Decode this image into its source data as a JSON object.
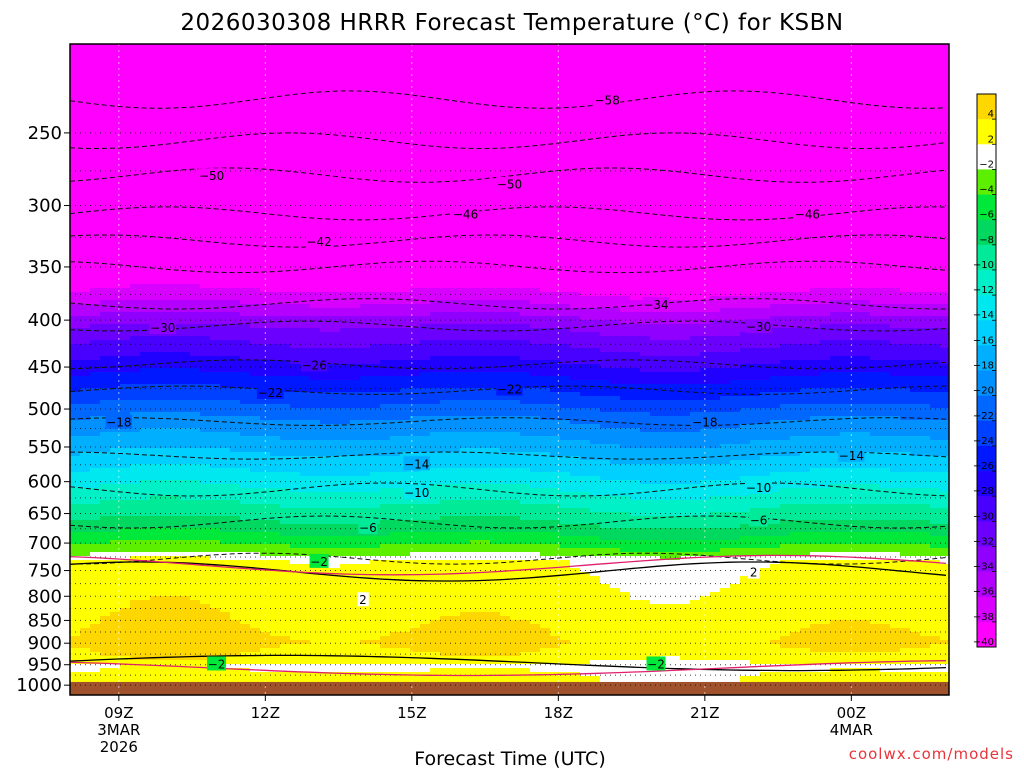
{
  "chart_data": {
    "type": "heatmap",
    "title": "2026030308 HRRR Forecast Temperature (°C) for KSBN",
    "xlabel": "Forecast Time (UTC)",
    "ylabel": "",
    "y_axis_unit": "hPa",
    "y_ticks": [
      250,
      300,
      350,
      400,
      450,
      500,
      550,
      600,
      650,
      700,
      750,
      800,
      850,
      900,
      950,
      1000
    ],
    "x_ticks": [
      {
        "hour": 9,
        "label": "09Z",
        "line2": "3MAR",
        "line3": "2026"
      },
      {
        "hour": 12,
        "label": "12Z",
        "line2": "",
        "line3": ""
      },
      {
        "hour": 15,
        "label": "15Z",
        "line2": "",
        "line3": ""
      },
      {
        "hour": 18,
        "label": "18Z",
        "line2": "",
        "line3": ""
      },
      {
        "hour": 21,
        "label": "21Z",
        "line2": "",
        "line3": ""
      },
      {
        "hour": 24,
        "label": "00Z",
        "line2": "4MAR",
        "line3": ""
      }
    ],
    "xlim": [
      8,
      26
    ],
    "ylim": [
      200,
      1025
    ],
    "ground_level_hPa": 992,
    "colorbar": {
      "labels": [
        4,
        2,
        -2,
        -4,
        -6,
        -8,
        -10,
        -12,
        -14,
        -16,
        -18,
        -20,
        -22,
        -24,
        -26,
        -28,
        -30,
        -32,
        -34,
        -36,
        -38,
        -40
      ],
      "colors": [
        "#ffd700",
        "#ffff00",
        "#ffffff",
        "#5cf000",
        "#00e83a",
        "#00d860",
        "#00ea98",
        "#00f0c8",
        "#00e8ef",
        "#00d0ff",
        "#00b0ff",
        "#0090ff",
        "#0068ff",
        "#0040ff",
        "#0018ff",
        "#2000ff",
        "#4800ff",
        "#6c00ff",
        "#9000ff",
        "#b400ff",
        "#d800ff",
        "#ff00ff"
      ]
    },
    "contour_labels": [
      {
        "text": "-58",
        "hour": 19.0,
        "p": 230
      },
      {
        "text": "-50",
        "hour": 10.9,
        "p": 278
      },
      {
        "text": "-50",
        "hour": 17.0,
        "p": 284
      },
      {
        "text": "-46",
        "hour": 16.1,
        "p": 306
      },
      {
        "text": "-46",
        "hour": 23.1,
        "p": 306
      },
      {
        "text": "-42",
        "hour": 13.1,
        "p": 328
      },
      {
        "text": "-34",
        "hour": 20.0,
        "p": 384
      },
      {
        "text": "-30",
        "hour": 9.9,
        "p": 407
      },
      {
        "text": "-30",
        "hour": 22.1,
        "p": 406
      },
      {
        "text": "-26",
        "hour": 13.0,
        "p": 447
      },
      {
        "text": "-22",
        "hour": 12.1,
        "p": 479
      },
      {
        "text": "-22",
        "hour": 17.0,
        "p": 475
      },
      {
        "text": "-18",
        "hour": 9.0,
        "p": 516
      },
      {
        "text": "-18",
        "hour": 21.0,
        "p": 516
      },
      {
        "text": "-14",
        "hour": 15.1,
        "p": 573
      },
      {
        "text": "-14",
        "hour": 24.0,
        "p": 561
      },
      {
        "text": "-10",
        "hour": 15.1,
        "p": 616
      },
      {
        "text": "-10",
        "hour": 22.1,
        "p": 608
      },
      {
        "text": "-6",
        "hour": 14.1,
        "p": 672
      },
      {
        "text": "-6",
        "hour": 22.1,
        "p": 660
      },
      {
        "text": "-2",
        "hour": 13.1,
        "p": 732
      },
      {
        "text": "2",
        "hour": 22.0,
        "p": 752
      },
      {
        "text": "2",
        "hour": 14.0,
        "p": 806
      },
      {
        "text": "-2",
        "hour": 11.0,
        "p": 947
      },
      {
        "text": "-2",
        "hour": 20.0,
        "p": 947
      }
    ]
  },
  "credit": "coolwx.com/models"
}
